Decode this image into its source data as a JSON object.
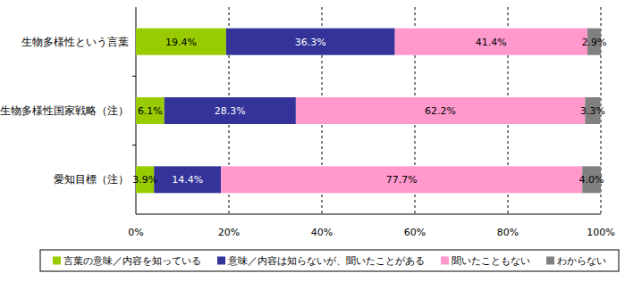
{
  "chart_data": {
    "type": "bar",
    "orientation": "horizontal",
    "stacked": true,
    "data_labels": true,
    "grid": true,
    "legend": "bottom",
    "categories": [
      "生物多様性という言葉",
      "生物多様性国家戦略（注）",
      "愛知目標（注）"
    ],
    "series": [
      {
        "name": "言葉の意味／内容を知っている",
        "color": "#99cc00",
        "values": [
          19.4,
          6.1,
          3.9
        ],
        "value_labels": [
          "19.4%",
          "6.1%",
          "3.9%"
        ]
      },
      {
        "name": "意味／内容は知らないが、聞いたことがある",
        "color": "#333399",
        "values": [
          36.3,
          28.3,
          14.4
        ],
        "value_labels": [
          "36.3%",
          "28.3%",
          "14.4%"
        ]
      },
      {
        "name": "聞いたこともない",
        "color": "#ff99cc",
        "values": [
          41.4,
          62.2,
          77.7
        ],
        "value_labels": [
          "41.4%",
          "62.2%",
          "77.7%"
        ]
      },
      {
        "name": "わからない",
        "color": "#808080",
        "values": [
          2.9,
          3.3,
          4.0
        ],
        "value_labels": [
          "2.9%",
          "3.3%",
          "4.0%"
        ]
      }
    ],
    "xlim": [
      0,
      100
    ],
    "xticks": [
      {
        "value": 0,
        "label": "0%"
      },
      {
        "value": 20,
        "label": "20%"
      },
      {
        "value": 40,
        "label": "40%"
      },
      {
        "value": 60,
        "label": "60%"
      },
      {
        "value": 80,
        "label": "80%"
      },
      {
        "value": 100,
        "label": "100%"
      }
    ]
  }
}
